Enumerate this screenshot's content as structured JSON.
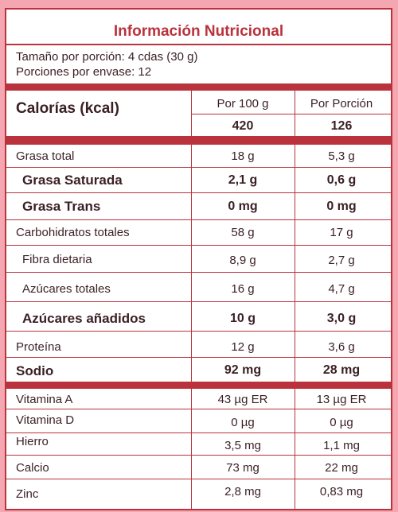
{
  "title": "Información Nutricional",
  "serving_size": "Tamaño por porción: 4 cdas (30 g)",
  "servings_per_container": "Porciones por envase: 12",
  "header": {
    "calories_label": "Calorías (kcal)",
    "col1_label": "Por 100 g",
    "col2_label": "Por Porción",
    "col1_calories": "420",
    "col2_calories": "126"
  },
  "rows": [
    {
      "label": "Grasa total",
      "per100": "18 g",
      "perServing": "5,3 g"
    },
    {
      "label": "Grasa Saturada",
      "per100": "2,1 g",
      "perServing": "0,6 g"
    },
    {
      "label": "Grasa Trans",
      "per100": "0 mg",
      "perServing": "0 mg"
    },
    {
      "label": "Carbohidratos totales",
      "per100": "58 g",
      "perServing": "17 g"
    },
    {
      "label": "Fibra dietaria",
      "per100": "8,9 g",
      "perServing": "2,7 g"
    },
    {
      "label": "Azúcares totales",
      "per100": "16 g",
      "perServing": "4,7 g"
    },
    {
      "label": "Azúcares añadidos",
      "per100": "10 g",
      "perServing": "3,0 g"
    },
    {
      "label": "Proteína",
      "per100": "12 g",
      "perServing": "3,6 g"
    },
    {
      "label": "Sodio",
      "per100": "92 mg",
      "perServing": "28 mg"
    }
  ],
  "vitamins": [
    {
      "label": "Vitamina A",
      "per100": "43  µg ER",
      "perServing": "13  µg ER"
    },
    {
      "label": "Vitamina D",
      "per100": "0 µg",
      "perServing": "0 µg"
    },
    {
      "label": "Hierro",
      "per100": "3,5 mg",
      "perServing": "1,1 mg"
    },
    {
      "label": "Calcio",
      "per100": "73 mg",
      "perServing": "22 mg"
    },
    {
      "label": "Zinc",
      "per100": "2,8 mg",
      "perServing": "0,83 mg"
    }
  ],
  "colors": {
    "accent": "#b9323c",
    "background": "#f4a7b0"
  }
}
